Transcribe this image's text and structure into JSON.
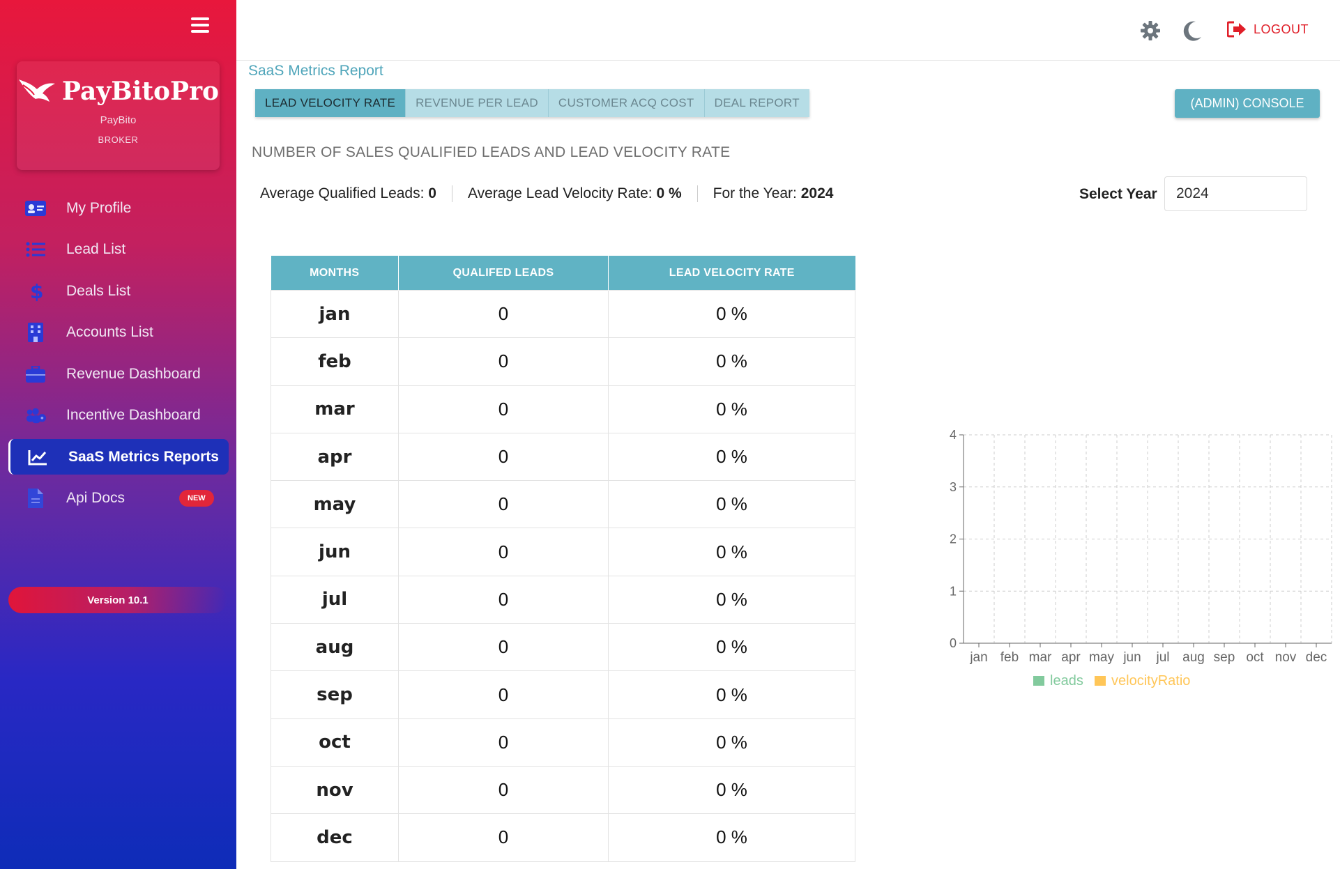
{
  "sidebar": {
    "brand_name": "PayBitoPro",
    "brand_sub": "PayBito",
    "brand_role": "BROKER",
    "items": [
      {
        "label": "My Profile",
        "icon": "id-card-icon"
      },
      {
        "label": "Lead List",
        "icon": "list-icon"
      },
      {
        "label": "Deals List",
        "icon": "dollar-icon"
      },
      {
        "label": "Accounts List",
        "icon": "building-icon"
      },
      {
        "label": "Revenue Dashboard",
        "icon": "briefcase-icon"
      },
      {
        "label": "Incentive Dashboard",
        "icon": "users-gear-icon"
      },
      {
        "label": "SaaS Metrics Reports",
        "icon": "chart-line-icon"
      },
      {
        "label": "Api Docs",
        "icon": "document-icon",
        "badge": "NEW"
      }
    ],
    "version": "Version 10.1"
  },
  "header": {
    "logout_label": "LOGOUT"
  },
  "breadcrumb": "SaaS Metrics Report",
  "tabs": [
    {
      "label": "LEAD VELOCITY RATE"
    },
    {
      "label": "REVENUE PER LEAD"
    },
    {
      "label": "CUSTOMER ACQ COST"
    },
    {
      "label": "DEAL REPORT"
    }
  ],
  "admin_console_label": "(ADMIN) CONSOLE",
  "section_title": "NUMBER OF SALES QUALIFIED LEADS AND LEAD VELOCITY RATE",
  "stats": {
    "avg_leads_label": "Average Qualified Leads:",
    "avg_leads_value": "0",
    "avg_rate_label": "Average Lead Velocity Rate:",
    "avg_rate_value": "0 %",
    "year_label": "For the Year:",
    "year_value": "2024"
  },
  "year_select": {
    "label": "Select Year",
    "value": "2024"
  },
  "table": {
    "headers": [
      "MONTHS",
      "QUALIFED LEADS",
      "LEAD VELOCITY RATE"
    ],
    "rows": [
      [
        "jan",
        "0",
        "0 %"
      ],
      [
        "feb",
        "0",
        "0 %"
      ],
      [
        "mar",
        "0",
        "0 %"
      ],
      [
        "apr",
        "0",
        "0 %"
      ],
      [
        "may",
        "0",
        "0 %"
      ],
      [
        "jun",
        "0",
        "0 %"
      ],
      [
        "jul",
        "0",
        "0 %"
      ],
      [
        "aug",
        "0",
        "0 %"
      ],
      [
        "sep",
        "0",
        "0 %"
      ],
      [
        "oct",
        "0",
        "0 %"
      ],
      [
        "nov",
        "0",
        "0 %"
      ],
      [
        "dec",
        "0",
        "0 %"
      ]
    ]
  },
  "chart_data": {
    "type": "bar",
    "categories": [
      "jan",
      "feb",
      "mar",
      "apr",
      "may",
      "jun",
      "jul",
      "aug",
      "sep",
      "oct",
      "nov",
      "dec"
    ],
    "series": [
      {
        "name": "leads",
        "values": [
          0,
          0,
          0,
          0,
          0,
          0,
          0,
          0,
          0,
          0,
          0,
          0
        ],
        "color": "#82ca9d"
      },
      {
        "name": "velocityRatio",
        "values": [
          0,
          0,
          0,
          0,
          0,
          0,
          0,
          0,
          0,
          0,
          0,
          0
        ],
        "color": "#ffc658"
      }
    ],
    "yticks": [
      "0",
      "1",
      "2",
      "3",
      "4"
    ],
    "ylim": [
      0,
      4
    ],
    "grid": true,
    "legend": "bottom"
  }
}
